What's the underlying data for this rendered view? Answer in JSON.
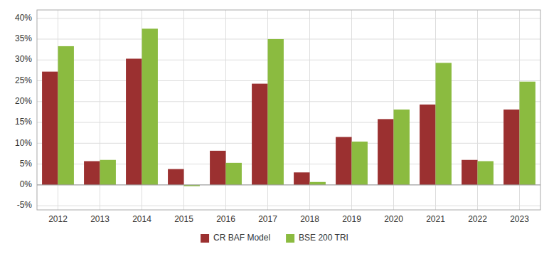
{
  "chart_data": {
    "type": "bar",
    "categories": [
      "2012",
      "2013",
      "2014",
      "2015",
      "2016",
      "2017",
      "2018",
      "2019",
      "2020",
      "2021",
      "2022",
      "2023"
    ],
    "series": [
      {
        "name": "CR BAF Model",
        "color": "#9B3030",
        "values": [
          27.2,
          5.7,
          30.3,
          3.8,
          8.2,
          24.3,
          3.0,
          11.5,
          15.8,
          19.3,
          6.0,
          18.1
        ]
      },
      {
        "name": "BSE 200 TRI",
        "color": "#8BBB40",
        "values": [
          33.3,
          6.0,
          37.5,
          -0.3,
          5.3,
          35.0,
          0.7,
          10.4,
          18.1,
          29.3,
          5.7,
          24.8
        ]
      }
    ],
    "ylim": [
      -6,
      42
    ],
    "yticks": [
      {
        "value": -5,
        "label": "-5%"
      },
      {
        "value": 0,
        "label": "0%"
      },
      {
        "value": 5,
        "label": "5%"
      },
      {
        "value": 10,
        "label": "10%"
      },
      {
        "value": 15,
        "label": "15%"
      },
      {
        "value": 20,
        "label": "20%"
      },
      {
        "value": 25,
        "label": "25%"
      },
      {
        "value": 30,
        "label": "30%"
      },
      {
        "value": 35,
        "label": "35%"
      },
      {
        "value": 40,
        "label": "40%"
      }
    ],
    "grid": true,
    "legend": "bottom"
  }
}
